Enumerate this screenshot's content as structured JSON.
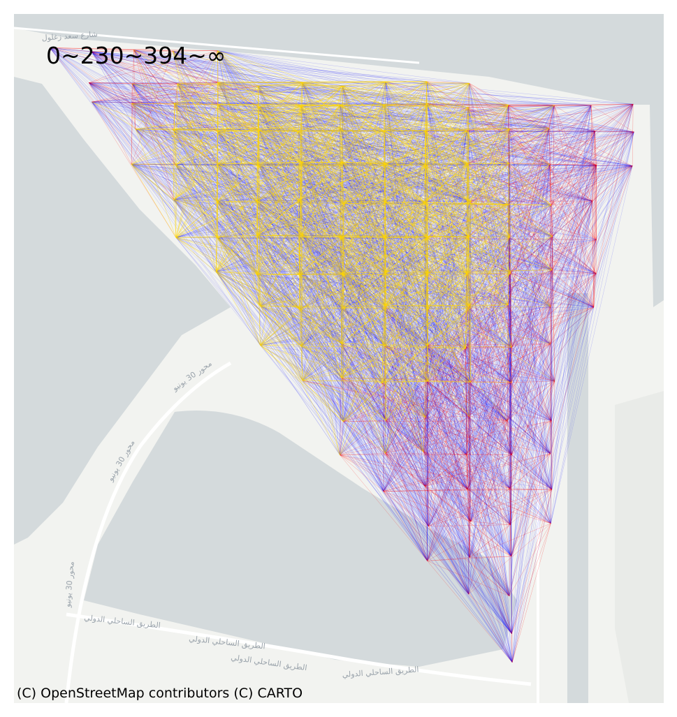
{
  "legend": {
    "text": "0~230~394~∞"
  },
  "attribution": {
    "text": "(C) OpenStreetMap contributors (C) CARTO"
  },
  "road_labels": [
    "شارع سعد زغلول",
    "محور 30 يونيو",
    "محور 30 يونيو",
    "محور 30 يونيو",
    "الطريق الساحلي الدولي",
    "الطريق الساحلي الدولي",
    "الطريق الساحلي الدولي",
    "الطريق الساحلي الدولي"
  ],
  "colors": {
    "water": "#d4dadc",
    "land": "#f2f3f0",
    "road": "#ffffff",
    "band_far": "#0000ff",
    "band_mid": "#ff0000",
    "band_near": "#ffd700"
  },
  "thresholds": [
    0,
    230,
    394,
    "∞"
  ]
}
